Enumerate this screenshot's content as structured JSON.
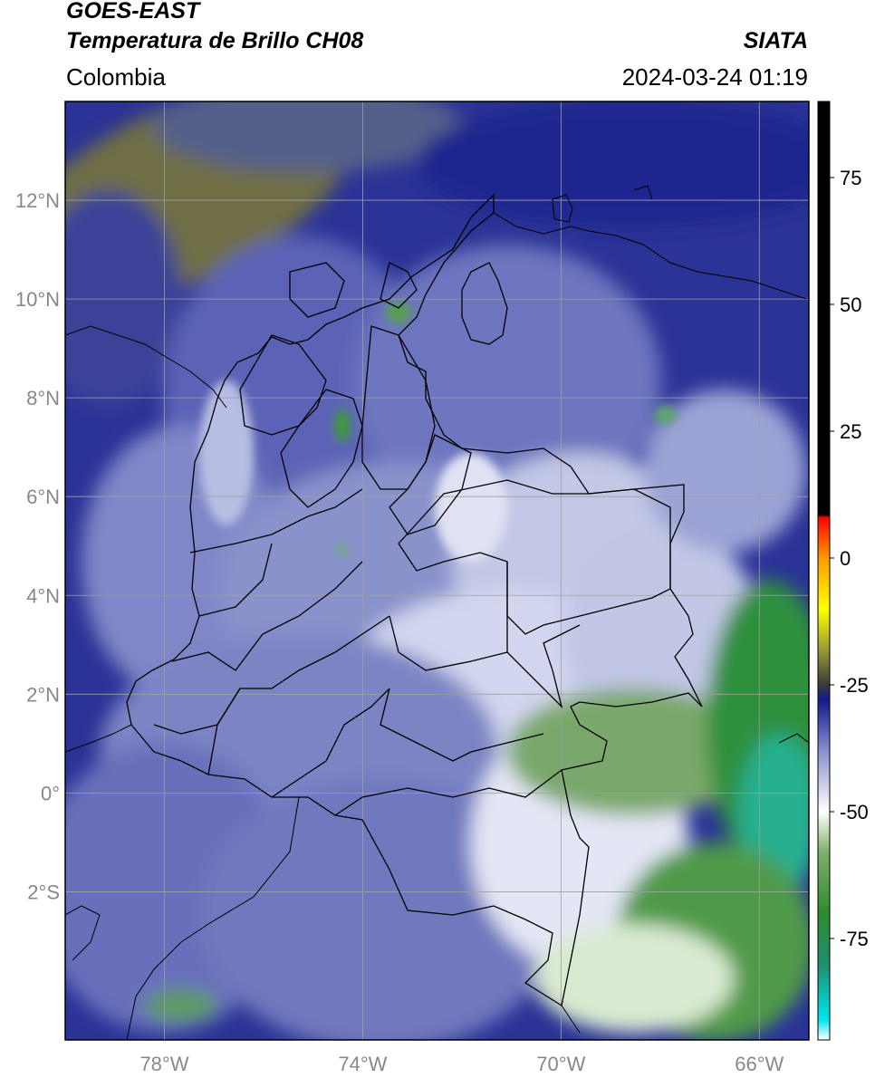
{
  "header": {
    "satellite": "GOES-EAST",
    "product": "Temperatura de Brillo CH08",
    "region": "Colombia",
    "brand": "SIATA",
    "datetime": "2024-03-24 01:19"
  },
  "map": {
    "lon_range": [
      -80.0,
      -65.0
    ],
    "lat_range": [
      -5.0,
      14.0
    ],
    "lat_ticks": [
      {
        "value": 12,
        "label": "12°N"
      },
      {
        "value": 10,
        "label": "10°N"
      },
      {
        "value": 8,
        "label": "8°N"
      },
      {
        "value": 6,
        "label": "6°N"
      },
      {
        "value": 4,
        "label": "4°N"
      },
      {
        "value": 2,
        "label": "2°N"
      },
      {
        "value": 0,
        "label": "0°"
      },
      {
        "value": -2,
        "label": "2°S"
      }
    ],
    "lon_ticks": [
      {
        "value": -78,
        "label": "78°W"
      },
      {
        "value": -74,
        "label": "74°W"
      },
      {
        "value": -70,
        "label": "70°W"
      },
      {
        "value": -66,
        "label": "66°W"
      }
    ],
    "gridlines": true
  },
  "colorbar": {
    "range": [
      -95,
      90
    ],
    "ticks": [
      {
        "value": 75,
        "label": "75"
      },
      {
        "value": 50,
        "label": "50"
      },
      {
        "value": 25,
        "label": "25"
      },
      {
        "value": 0,
        "label": "0"
      },
      {
        "value": -25,
        "label": "-25"
      },
      {
        "value": -50,
        "label": "-50"
      },
      {
        "value": -75,
        "label": "-75"
      }
    ],
    "stops": [
      {
        "value": -95,
        "color": "#ffffff"
      },
      {
        "value": -91,
        "color": "#00e5ee"
      },
      {
        "value": -80,
        "color": "#1e8f6e"
      },
      {
        "value": -70,
        "color": "#2e8b2e"
      },
      {
        "value": -58,
        "color": "#7fb06a"
      },
      {
        "value": -50,
        "color": "#ffffff"
      },
      {
        "value": -38,
        "color": "#8890cc"
      },
      {
        "value": -28,
        "color": "#121a8c"
      },
      {
        "value": -25,
        "color": "#3a3a3a"
      },
      {
        "value": -18,
        "color": "#9a9a33"
      },
      {
        "value": -10,
        "color": "#ffff00"
      },
      {
        "value": 0,
        "color": "#ff9900"
      },
      {
        "value": 8,
        "color": "#ff0000"
      },
      {
        "value": 8.5,
        "color": "#000000"
      },
      {
        "value": 90,
        "color": "#000000"
      }
    ]
  },
  "colors": {
    "deep_blue": "#1a2490",
    "mid_blue": "#5a64b8",
    "pale": "#c9cde8",
    "olive": "#7c7a3a",
    "green": "#3a8f3a",
    "teal": "#22aa88",
    "grid": "#a0a0a0",
    "axis_label": "#888888"
  }
}
